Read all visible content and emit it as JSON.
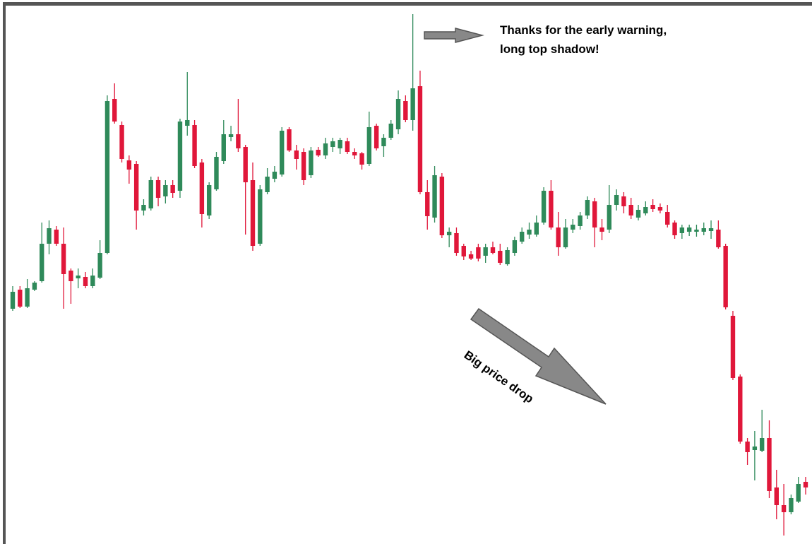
{
  "chart_data": {
    "type": "candlestick",
    "annotations": [
      "Thanks for the early warning,",
      "long top shadow!",
      "Big price drop"
    ],
    "up_color": "#2f8a5a",
    "down_color": "#e0173a",
    "ylim": [
      0,
      770
    ],
    "open": [
      333,
      360,
      336,
      360,
      372,
      425,
      445,
      425,
      387,
      376,
      378,
      365,
      377,
      412,
      630,
      593,
      543,
      538,
      472,
      475,
      515,
      492,
      508,
      500,
      592,
      593,
      540,
      465,
      502,
      542,
      576,
      580,
      562,
      515,
      425,
      498,
      517,
      523,
      587,
      557,
      555,
      522,
      558,
      550,
      562,
      560,
      570,
      555,
      553,
      538,
      592,
      563,
      575,
      587,
      627,
      600,
      648,
      498,
      462,
      520,
      437,
      440,
      422,
      410,
      420,
      408,
      420,
      415,
      396,
      412,
      428,
      438,
      438,
      455,
      500,
      448,
      420,
      445,
      450,
      465,
      485,
      448,
      445,
      480,
      492,
      480,
      462,
      468,
      480,
      477,
      470,
      455,
      440,
      442,
      442,
      442,
      443,
      445,
      422,
      323,
      237,
      145,
      133,
      132,
      150,
      80,
      55,
      45,
      60,
      88
    ],
    "high": [
      365,
      365,
      375,
      372,
      455,
      458,
      450,
      448,
      390,
      390,
      385,
      390,
      430,
      635,
      652,
      598,
      550,
      542,
      488,
      520,
      520,
      515,
      515,
      602,
      668,
      600,
      545,
      512,
      555,
      600,
      592,
      630,
      565,
      540,
      508,
      532,
      535,
      590,
      590,
      565,
      560,
      562,
      562,
      575,
      575,
      575,
      575,
      560,
      555,
      612,
      595,
      580,
      600,
      642,
      635,
      750,
      670,
      515,
      535,
      525,
      448,
      448,
      425,
      415,
      425,
      425,
      428,
      425,
      420,
      435,
      448,
      455,
      465,
      505,
      515,
      470,
      460,
      460,
      470,
      492,
      490,
      460,
      508,
      502,
      498,
      490,
      480,
      485,
      488,
      482,
      480,
      458,
      452,
      452,
      452,
      455,
      458,
      458,
      425,
      330,
      240,
      150,
      160,
      190,
      175,
      105,
      85,
      70,
      95,
      95
    ],
    "low": [
      330,
      334,
      334,
      358,
      370,
      410,
      422,
      333,
      340,
      362,
      362,
      362,
      375,
      410,
      595,
      540,
      510,
      445,
      465,
      472,
      478,
      482,
      490,
      490,
      578,
      532,
      448,
      460,
      500,
      538,
      570,
      555,
      438,
      415,
      422,
      495,
      512,
      520,
      555,
      530,
      508,
      518,
      548,
      545,
      555,
      552,
      552,
      545,
      530,
      535,
      557,
      548,
      572,
      580,
      597,
      585,
      495,
      445,
      455,
      433,
      420,
      408,
      402,
      402,
      400,
      398,
      410,
      395,
      394,
      408,
      425,
      432,
      435,
      452,
      445,
      408,
      418,
      440,
      445,
      460,
      420,
      430,
      440,
      472,
      468,
      460,
      458,
      465,
      470,
      468,
      448,
      432,
      432,
      436,
      435,
      437,
      432,
      418,
      332,
      232,
      142,
      112,
      90,
      130,
      65,
      35,
      12,
      42,
      58,
      70
    ],
    "close": [
      357,
      336,
      362,
      370,
      425,
      447,
      425,
      382,
      372,
      380,
      365,
      380,
      412,
      627,
      598,
      545,
      530,
      472,
      480,
      515,
      490,
      508,
      497,
      598,
      600,
      535,
      467,
      508,
      548,
      580,
      580,
      560,
      512,
      422,
      502,
      520,
      527,
      585,
      557,
      545,
      515,
      557,
      550,
      567,
      570,
      572,
      555,
      550,
      537,
      590,
      560,
      575,
      595,
      630,
      600,
      645,
      498,
      464,
      522,
      437,
      442,
      412,
      407,
      404,
      404,
      420,
      412,
      398,
      416,
      430,
      442,
      445,
      455,
      500,
      448,
      420,
      448,
      452,
      465,
      487,
      448,
      442,
      480,
      494,
      478,
      465,
      473,
      477,
      474,
      472,
      452,
      437,
      448,
      448,
      445,
      447,
      447,
      420,
      335,
      235,
      145,
      130,
      138,
      150,
      75,
      55,
      45,
      65,
      85,
      80
    ]
  }
}
